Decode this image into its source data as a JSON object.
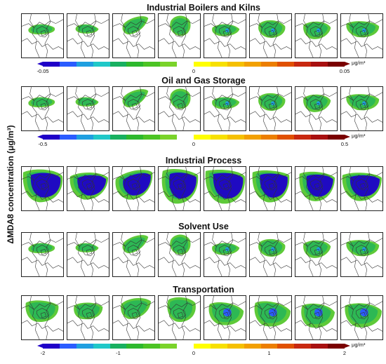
{
  "ylabel": "ΔMDA8 concentration (μg/m³)",
  "colors": {
    "scale": [
      "#1f00c8",
      "#2a5cff",
      "#1f9fe0",
      "#20c8c8",
      "#18b060",
      "#2db82d",
      "#4cc424",
      "#7ad32a",
      "#ffffff",
      "#ffff00",
      "#f7e000",
      "#f5c000",
      "#f2a000",
      "#ec7e00",
      "#e05000",
      "#c82810",
      "#a81010",
      "#7a0000"
    ]
  },
  "rows": [
    {
      "title": "Industrial Boilers and Kilns",
      "ticks": [
        "-0.05",
        "0",
        "0.05"
      ],
      "unit": "μg/m³",
      "blobs": "small"
    },
    {
      "title": "Oil and Gas Storage",
      "ticks": [
        "-0.5",
        "0",
        "0.5"
      ],
      "unit": "μg/m³",
      "blobs": "small"
    },
    {
      "title": "Industrial Process",
      "ticks": [],
      "unit": "",
      "blobs": "large"
    },
    {
      "title": "Solvent Use",
      "ticks": [],
      "unit": "",
      "blobs": "small"
    },
    {
      "title": "Transportation",
      "ticks": [
        "-2",
        "-1",
        "0",
        "1",
        "2"
      ],
      "unit": "μg/m³",
      "blobs": "medium"
    }
  ]
}
